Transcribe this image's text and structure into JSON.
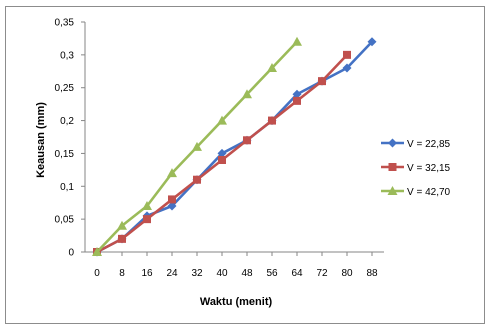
{
  "chart_data": {
    "type": "line",
    "xlabel": "Waktu (menit)",
    "ylabel": "Keausan (mm)",
    "xlim": [
      0,
      88
    ],
    "ylim": [
      0,
      0.35
    ],
    "x_ticks": [
      "0",
      "8",
      "16",
      "24",
      "32",
      "40",
      "48",
      "56",
      "64",
      "72",
      "80",
      "88"
    ],
    "y_ticks": [
      "0",
      "0,05",
      "0,1",
      "0,15",
      "0,2",
      "0,25",
      "0,3",
      "0,35"
    ],
    "grid": false,
    "legend_position": "right",
    "series": [
      {
        "name": "V = 22,85",
        "color": "#4472C4",
        "marker": "diamond",
        "x": [
          0,
          8,
          16,
          24,
          32,
          40,
          48,
          56,
          64,
          72,
          80,
          88
        ],
        "y": [
          0,
          0.02,
          0.055,
          0.07,
          0.11,
          0.15,
          0.17,
          0.2,
          0.24,
          0.26,
          0.28,
          0.32
        ]
      },
      {
        "name": "V =  32,15",
        "color": "#C0504D",
        "marker": "square",
        "x": [
          0,
          8,
          16,
          24,
          32,
          40,
          48,
          56,
          64,
          72,
          80
        ],
        "y": [
          0,
          0.02,
          0.05,
          0.08,
          0.11,
          0.14,
          0.17,
          0.2,
          0.23,
          0.26,
          0.3
        ]
      },
      {
        "name": "V = 42,70",
        "color": "#9BBB59",
        "marker": "triangle",
        "x": [
          0,
          8,
          16,
          24,
          32,
          40,
          48,
          56,
          64
        ],
        "y": [
          0,
          0.04,
          0.07,
          0.12,
          0.16,
          0.2,
          0.24,
          0.28,
          0.32
        ]
      }
    ]
  }
}
